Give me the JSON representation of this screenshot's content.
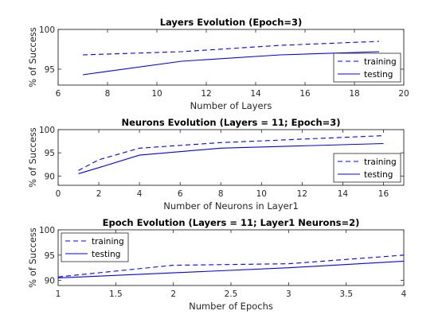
{
  "chart_data": [
    {
      "type": "line",
      "title": "Layers Evolution (Epoch=3)",
      "xlabel": "Number of Layers",
      "ylabel": "% of Success",
      "xlim": [
        6,
        20
      ],
      "ylim": [
        93,
        100
      ],
      "xticks": [
        6,
        8,
        10,
        12,
        14,
        16,
        18,
        20
      ],
      "yticks": [
        95,
        100
      ],
      "legend": "bottom-right",
      "series": [
        {
          "name": "training",
          "style": "dashed",
          "color": "#0000ff",
          "x": [
            7,
            11,
            15,
            19
          ],
          "y": [
            96.8,
            97.2,
            98.0,
            98.5
          ]
        },
        {
          "name": "testing",
          "style": "solid",
          "color": "#0000ff",
          "x": [
            7,
            11,
            15,
            19
          ],
          "y": [
            94.3,
            96.0,
            96.8,
            97.2
          ]
        }
      ]
    },
    {
      "type": "line",
      "title": "Neurons Evolution (Layers = 11; Epoch=3)",
      "xlabel": "Number of Neurons in Layer1",
      "ylabel": "% of Success",
      "xlim": [
        0,
        17
      ],
      "ylim": [
        88,
        100
      ],
      "xticks": [
        0,
        2,
        4,
        6,
        8,
        10,
        12,
        14,
        16
      ],
      "yticks": [
        90,
        95,
        100
      ],
      "legend": "bottom-right",
      "series": [
        {
          "name": "training",
          "style": "dashed",
          "color": "#0000ff",
          "x": [
            1,
            2,
            4,
            8,
            16
          ],
          "y": [
            91.2,
            93.5,
            96.0,
            97.2,
            98.7
          ]
        },
        {
          "name": "testing",
          "style": "solid",
          "color": "#0000ff",
          "x": [
            1,
            2,
            4,
            8,
            16
          ],
          "y": [
            90.5,
            91.8,
            94.5,
            96.0,
            97.0
          ]
        }
      ]
    },
    {
      "type": "line",
      "title": "Epoch Evolution (Layers = 11; Layer1 Neurons=2)",
      "xlabel": "Number of Epochs",
      "ylabel": "% of Success",
      "xlim": [
        1,
        4
      ],
      "ylim": [
        89,
        100
      ],
      "xticks": [
        1,
        1.5,
        2,
        2.5,
        3,
        3.5,
        4
      ],
      "yticks": [
        90,
        95,
        100
      ],
      "legend": "top-left",
      "series": [
        {
          "name": "training",
          "style": "dashed",
          "color": "#0000ff",
          "x": [
            1,
            2,
            3,
            4
          ],
          "y": [
            90.7,
            93.0,
            93.3,
            95.0
          ]
        },
        {
          "name": "testing",
          "style": "solid",
          "color": "#0000ff",
          "x": [
            1,
            2,
            3,
            4
          ],
          "y": [
            90.5,
            91.5,
            92.5,
            93.8
          ]
        }
      ]
    }
  ]
}
